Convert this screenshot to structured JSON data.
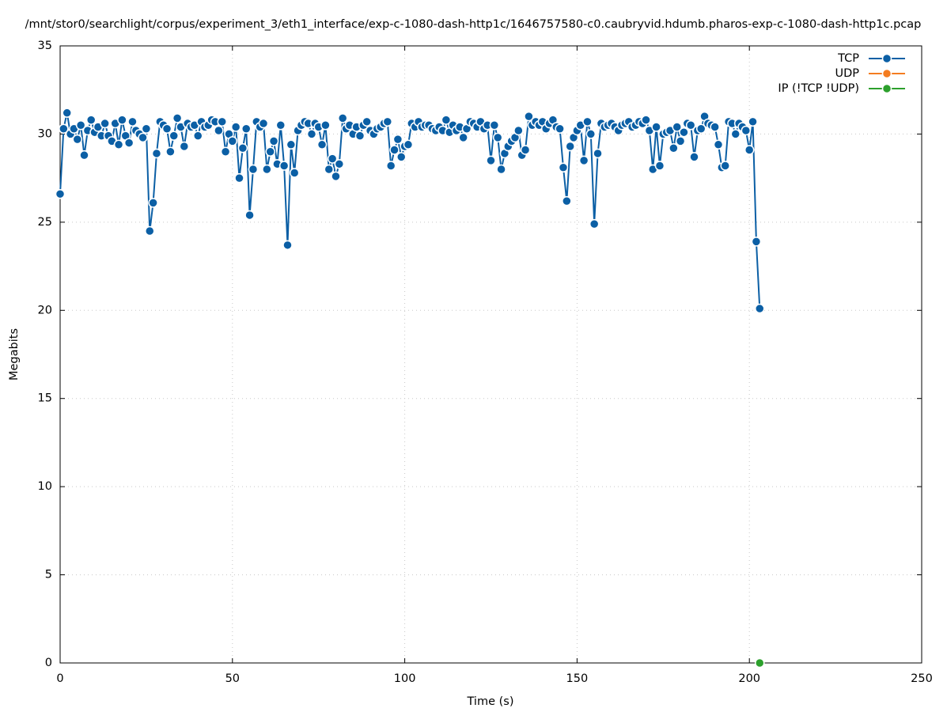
{
  "chart_data": {
    "type": "line",
    "title": "/mnt/stor0/searchlight/corpus/experiment_3/eth1_interface/exp-c-1080-dash-http1c/1646757580-c0.caubryvid.hdumb.pharos-exp-c-1080-dash-http1c.pcap",
    "xlabel": "Time (s)",
    "ylabel": "Megabits",
    "xlim": [
      0,
      250
    ],
    "xticks": [
      0,
      50,
      100,
      150,
      200,
      250
    ],
    "ylim": [
      0,
      35
    ],
    "yticks": [
      0,
      5,
      10,
      15,
      20,
      25,
      30,
      35
    ],
    "grid": true,
    "legend": "top-right",
    "series": [
      {
        "name": "TCP",
        "color": "#0b5fa5",
        "x": [
          0,
          1,
          2,
          3,
          4,
          5,
          6,
          7,
          8,
          9,
          10,
          11,
          12,
          13,
          14,
          15,
          16,
          17,
          18,
          19,
          20,
          21,
          22,
          23,
          24,
          25,
          26,
          27,
          28,
          29,
          30,
          31,
          32,
          33,
          34,
          35,
          36,
          37,
          38,
          39,
          40,
          41,
          42,
          43,
          44,
          45,
          46,
          47,
          48,
          49,
          50,
          51,
          52,
          53,
          54,
          55,
          56,
          57,
          58,
          59,
          60,
          61,
          62,
          63,
          64,
          65,
          66,
          67,
          68,
          69,
          70,
          71,
          72,
          73,
          74,
          75,
          76,
          77,
          78,
          79,
          80,
          81,
          82,
          83,
          84,
          85,
          86,
          87,
          88,
          89,
          90,
          91,
          92,
          93,
          94,
          95,
          96,
          97,
          98,
          99,
          100,
          101,
          102,
          103,
          104,
          105,
          106,
          107,
          108,
          109,
          110,
          111,
          112,
          113,
          114,
          115,
          116,
          117,
          118,
          119,
          120,
          121,
          122,
          123,
          124,
          125,
          126,
          127,
          128,
          129,
          130,
          131,
          132,
          133,
          134,
          135,
          136,
          137,
          138,
          139,
          140,
          141,
          142,
          143,
          144,
          145,
          146,
          147,
          148,
          149,
          150,
          151,
          152,
          153,
          154,
          155,
          156,
          157,
          158,
          159,
          160,
          161,
          162,
          163,
          164,
          165,
          166,
          167,
          168,
          169,
          170,
          171,
          172,
          173,
          174,
          175,
          176,
          177,
          178,
          179,
          180,
          181,
          182,
          183,
          184,
          185,
          186,
          187,
          188,
          189,
          190,
          191,
          192,
          193,
          194,
          195,
          196,
          197,
          198,
          199,
          200,
          201,
          202,
          203
        ],
        "values": [
          26.6,
          30.3,
          31.2,
          30.0,
          30.3,
          29.7,
          30.5,
          28.8,
          30.2,
          30.8,
          30.1,
          30.4,
          29.9,
          30.6,
          29.9,
          29.6,
          30.6,
          29.4,
          30.8,
          29.9,
          29.5,
          30.7,
          30.2,
          30.0,
          29.8,
          30.3,
          24.5,
          26.1,
          28.9,
          30.7,
          30.5,
          30.3,
          29.0,
          29.9,
          30.9,
          30.4,
          29.3,
          30.6,
          30.4,
          30.5,
          29.9,
          30.7,
          30.4,
          30.5,
          30.8,
          30.7,
          30.2,
          30.7,
          29.0,
          30.0,
          29.6,
          30.4,
          27.5,
          29.2,
          30.3,
          25.4,
          28.0,
          30.7,
          30.4,
          30.6,
          28.0,
          29.0,
          29.6,
          28.3,
          30.5,
          28.2,
          23.7,
          29.4,
          27.8,
          30.2,
          30.5,
          30.7,
          30.6,
          30.0,
          30.6,
          30.4,
          29.4,
          30.5,
          28.0,
          28.6,
          27.6,
          28.3,
          30.9,
          30.3,
          30.5,
          30.0,
          30.4,
          29.9,
          30.5,
          30.7,
          30.2,
          30.0,
          30.3,
          30.4,
          30.6,
          30.7,
          28.2,
          29.1,
          29.7,
          28.7,
          29.3,
          29.4,
          30.6,
          30.4,
          30.7,
          30.4,
          30.5,
          30.5,
          30.3,
          30.2,
          30.4,
          30.2,
          30.8,
          30.1,
          30.5,
          30.2,
          30.4,
          29.8,
          30.3,
          30.7,
          30.6,
          30.4,
          30.7,
          30.3,
          30.5,
          28.5,
          30.5,
          29.8,
          28.0,
          28.9,
          29.3,
          29.6,
          29.8,
          30.2,
          28.8,
          29.1,
          31.0,
          30.5,
          30.7,
          30.5,
          30.7,
          30.3,
          30.6,
          30.8,
          30.4,
          30.3,
          28.1,
          26.2,
          29.3,
          29.8,
          30.2,
          30.5,
          28.5,
          30.7,
          30.0,
          24.9,
          28.9,
          30.6,
          30.4,
          30.5,
          30.6,
          30.4,
          30.2,
          30.5,
          30.6,
          30.7,
          30.4,
          30.5,
          30.7,
          30.6,
          30.8,
          30.2,
          28.0,
          30.4,
          28.2,
          30.0,
          30.1,
          30.2,
          29.2,
          30.4,
          29.6,
          30.1,
          30.6,
          30.5,
          28.7,
          30.2,
          30.3,
          31.0,
          30.6,
          30.5,
          30.4,
          29.4,
          28.1,
          28.2,
          30.7,
          30.6,
          30.0,
          30.6,
          30.4,
          30.2,
          29.1,
          30.7,
          23.9,
          20.1
        ]
      },
      {
        "name": "UDP",
        "color": "#f47c20",
        "x": [],
        "values": []
      },
      {
        "name": "IP (!TCP  !UDP)",
        "color": "#2ca02c",
        "x": [
          203
        ],
        "values": [
          0
        ]
      }
    ]
  }
}
